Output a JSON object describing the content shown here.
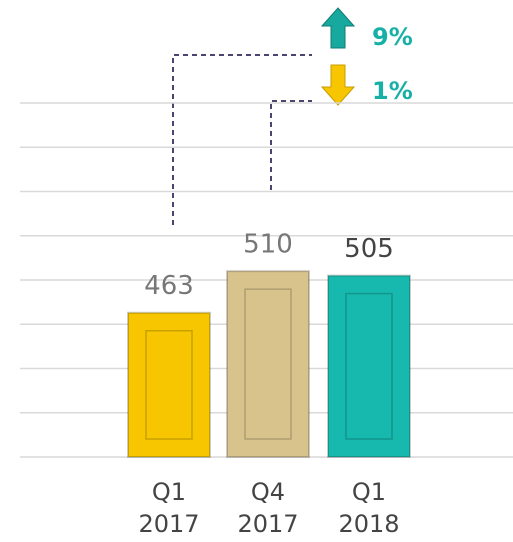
{
  "chart_data": {
    "type": "bar",
    "categories": [
      "Q1 2017",
      "Q4 2017",
      "Q1 2018"
    ],
    "values": [
      463,
      510,
      505
    ],
    "colors": [
      "#f7c600",
      "#d9c38c",
      "#17b9ae"
    ],
    "ylim": [
      300,
      700
    ],
    "yticks": [
      300,
      350,
      400,
      450,
      500,
      550,
      600,
      650,
      700
    ],
    "grid": true,
    "annotations": [
      "9%",
      "1%"
    ]
  }
}
